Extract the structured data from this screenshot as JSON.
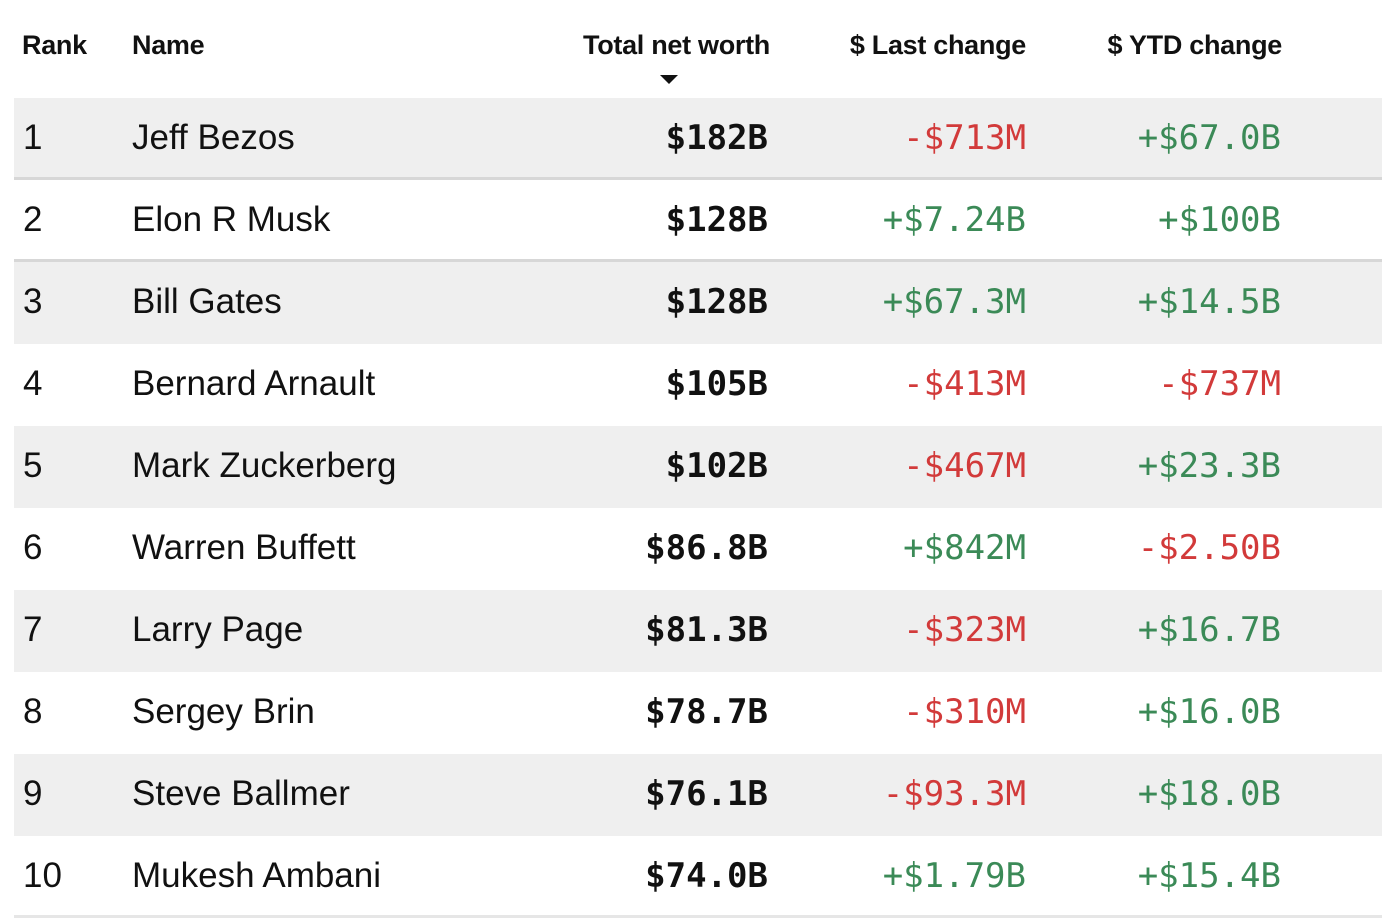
{
  "columns": {
    "rank": "Rank",
    "name": "Name",
    "total_net_worth": "Total net worth",
    "last_change": "$ Last change",
    "ytd_change": "$ YTD change"
  },
  "sort": {
    "column": "total_net_worth",
    "direction": "descending"
  },
  "colors": {
    "positive": "#3b8a57",
    "negative": "#d23a3a",
    "row_shade": "#efefef"
  },
  "rows": [
    {
      "rank": "1",
      "name": "Jeff Bezos",
      "total_net_worth": "$182B",
      "last_change": "-$713M",
      "ytd_change": "+$67.0B"
    },
    {
      "rank": "2",
      "name": "Elon R Musk",
      "total_net_worth": "$128B",
      "last_change": "+$7.24B",
      "ytd_change": "+$100B"
    },
    {
      "rank": "3",
      "name": "Bill Gates",
      "total_net_worth": "$128B",
      "last_change": "+$67.3M",
      "ytd_change": "+$14.5B"
    },
    {
      "rank": "4",
      "name": "Bernard Arnault",
      "total_net_worth": "$105B",
      "last_change": "-$413M",
      "ytd_change": "-$737M"
    },
    {
      "rank": "5",
      "name": "Mark Zuckerberg",
      "total_net_worth": "$102B",
      "last_change": "-$467M",
      "ytd_change": "+$23.3B"
    },
    {
      "rank": "6",
      "name": "Warren Buffett",
      "total_net_worth": "$86.8B",
      "last_change": "+$842M",
      "ytd_change": "-$2.50B"
    },
    {
      "rank": "7",
      "name": "Larry Page",
      "total_net_worth": "$81.3B",
      "last_change": "-$323M",
      "ytd_change": "+$16.7B"
    },
    {
      "rank": "8",
      "name": "Sergey Brin",
      "total_net_worth": "$78.7B",
      "last_change": "-$310M",
      "ytd_change": "+$16.0B"
    },
    {
      "rank": "9",
      "name": "Steve Ballmer",
      "total_net_worth": "$76.1B",
      "last_change": "-$93.3M",
      "ytd_change": "+$18.0B"
    },
    {
      "rank": "10",
      "name": "Mukesh Ambani",
      "total_net_worth": "$74.0B",
      "last_change": "+$1.79B",
      "ytd_change": "+$15.4B"
    }
  ]
}
